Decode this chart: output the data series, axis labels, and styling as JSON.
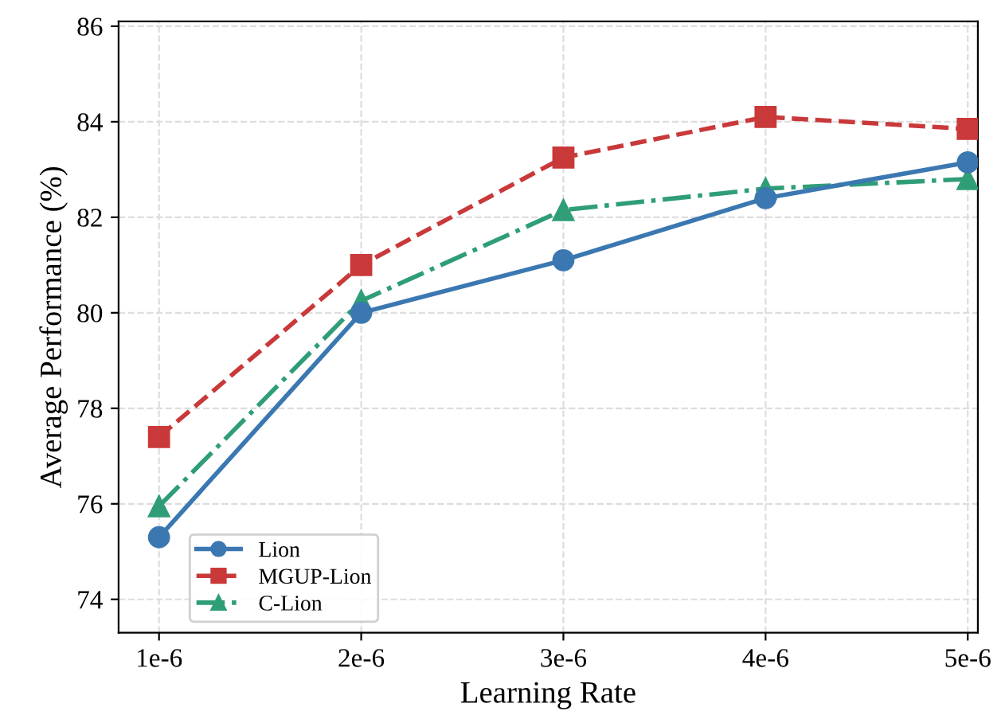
{
  "chart_data": {
    "type": "line",
    "xlabel": "Learning Rate",
    "ylabel": "Average Performance (%)",
    "categories": [
      "1e-6",
      "2e-6",
      "3e-6",
      "4e-6",
      "5e-6"
    ],
    "series": [
      {
        "name": "Lion",
        "color": "#3b78b1",
        "marker": "circle",
        "line_style": "solid",
        "values": [
          75.3,
          80.0,
          81.1,
          82.4,
          83.15
        ]
      },
      {
        "name": "MGUP-Lion",
        "color": "#c9393a",
        "marker": "square",
        "line_style": "dashed",
        "values": [
          77.4,
          81.0,
          83.25,
          84.1,
          83.85
        ]
      },
      {
        "name": "C-Lion",
        "color": "#2f9e76",
        "marker": "triangle",
        "line_style": "dashdot",
        "values": [
          75.95,
          80.25,
          82.15,
          82.6,
          82.8
        ]
      }
    ],
    "ylim": [
      73.3,
      86.1
    ],
    "yticks": [
      74,
      76,
      78,
      80,
      82,
      84,
      86
    ],
    "grid": true,
    "legend": "bottom left"
  }
}
